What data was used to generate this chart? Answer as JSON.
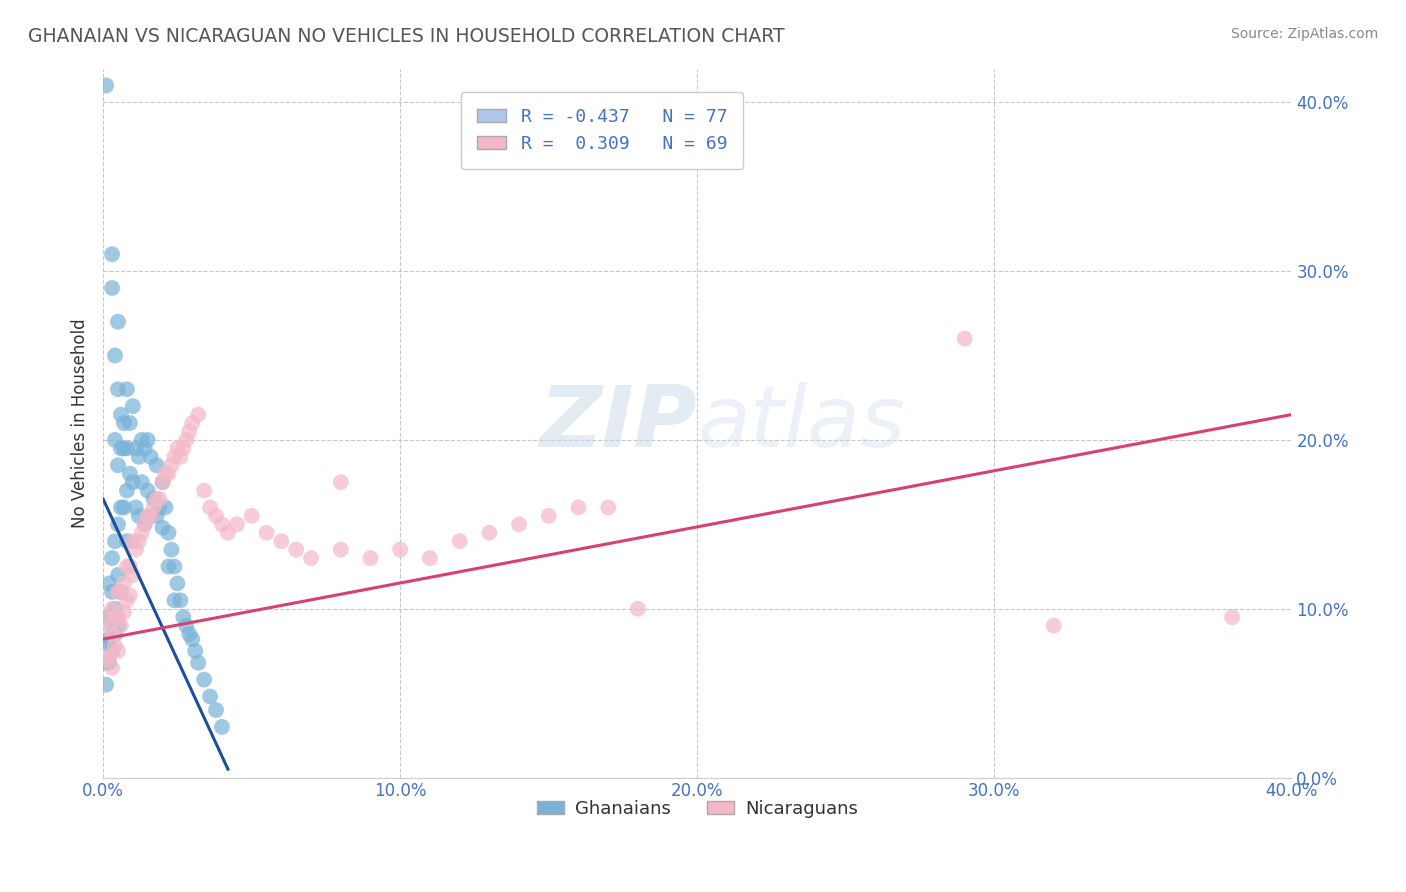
{
  "title": "GHANAIAN VS NICARAGUAN NO VEHICLES IN HOUSEHOLD CORRELATION CHART",
  "source": "Source: ZipAtlas.com",
  "ylabel": "No Vehicles in Household",
  "watermark_zip": "ZIP",
  "watermark_atlas": "atlas",
  "legend_entries": [
    {
      "label": "R = -0.437   N = 77",
      "color": "#aec6e8"
    },
    {
      "label": "R =  0.309   N = 69",
      "color": "#f4b8c8"
    }
  ],
  "legend_bottom": [
    "Ghanaians",
    "Nicaraguans"
  ],
  "ghanaian_color": "#7ab3d9",
  "nicaraguan_color": "#f4b8c8",
  "blue_line_color": "#1a4f9c",
  "pink_line_color": "#d94070",
  "title_color": "#555555",
  "axis_label_color": "#4472c4",
  "grid_color": "#bbbbbb",
  "background_color": "#ffffff",
  "xlim": [
    0.0,
    0.4
  ],
  "ylim": [
    0.0,
    0.42
  ],
  "yticks": [
    0.0,
    0.1,
    0.2,
    0.3,
    0.4
  ],
  "ytick_labels": [
    "0.0%",
    "10.0%",
    "20.0%",
    "30.0%",
    "40.0%"
  ],
  "xticks": [
    0.0,
    0.1,
    0.2,
    0.3,
    0.4
  ],
  "xtick_labels": [
    "0.0%",
    "10.0%",
    "20.0%",
    "30.0%",
    "40.0%"
  ],
  "ghanaians_x": [
    0.001,
    0.001,
    0.001,
    0.001,
    0.001,
    0.002,
    0.002,
    0.002,
    0.002,
    0.003,
    0.003,
    0.003,
    0.003,
    0.003,
    0.003,
    0.004,
    0.004,
    0.004,
    0.004,
    0.004,
    0.005,
    0.005,
    0.005,
    0.005,
    0.005,
    0.005,
    0.006,
    0.006,
    0.006,
    0.006,
    0.007,
    0.007,
    0.007,
    0.008,
    0.008,
    0.008,
    0.008,
    0.009,
    0.009,
    0.01,
    0.01,
    0.011,
    0.011,
    0.012,
    0.012,
    0.013,
    0.013,
    0.014,
    0.014,
    0.015,
    0.015,
    0.016,
    0.016,
    0.017,
    0.018,
    0.018,
    0.019,
    0.02,
    0.02,
    0.021,
    0.022,
    0.022,
    0.023,
    0.024,
    0.024,
    0.025,
    0.026,
    0.027,
    0.028,
    0.029,
    0.03,
    0.031,
    0.032,
    0.034,
    0.036,
    0.038,
    0.04
  ],
  "ghanaians_y": [
    0.41,
    0.095,
    0.08,
    0.068,
    0.055,
    0.115,
    0.095,
    0.082,
    0.068,
    0.31,
    0.29,
    0.13,
    0.11,
    0.09,
    0.075,
    0.25,
    0.2,
    0.14,
    0.1,
    0.085,
    0.27,
    0.23,
    0.185,
    0.15,
    0.12,
    0.09,
    0.215,
    0.195,
    0.16,
    0.11,
    0.21,
    0.195,
    0.16,
    0.23,
    0.195,
    0.17,
    0.14,
    0.21,
    0.18,
    0.22,
    0.175,
    0.195,
    0.16,
    0.19,
    0.155,
    0.2,
    0.175,
    0.195,
    0.15,
    0.2,
    0.17,
    0.19,
    0.155,
    0.165,
    0.185,
    0.155,
    0.16,
    0.175,
    0.148,
    0.16,
    0.145,
    0.125,
    0.135,
    0.125,
    0.105,
    0.115,
    0.105,
    0.095,
    0.09,
    0.085,
    0.082,
    0.075,
    0.068,
    0.058,
    0.048,
    0.04,
    0.03
  ],
  "nicaraguans_x": [
    0.001,
    0.001,
    0.002,
    0.002,
    0.003,
    0.003,
    0.003,
    0.004,
    0.004,
    0.005,
    0.005,
    0.005,
    0.006,
    0.006,
    0.007,
    0.007,
    0.008,
    0.008,
    0.009,
    0.009,
    0.01,
    0.01,
    0.011,
    0.012,
    0.013,
    0.014,
    0.015,
    0.016,
    0.017,
    0.018,
    0.019,
    0.02,
    0.021,
    0.022,
    0.023,
    0.024,
    0.025,
    0.026,
    0.027,
    0.028,
    0.029,
    0.03,
    0.032,
    0.034,
    0.036,
    0.038,
    0.04,
    0.042,
    0.045,
    0.05,
    0.055,
    0.06,
    0.065,
    0.07,
    0.08,
    0.09,
    0.1,
    0.11,
    0.12,
    0.13,
    0.14,
    0.15,
    0.16,
    0.17,
    0.29,
    0.32,
    0.38,
    0.08,
    0.18
  ],
  "nicaraguans_y": [
    0.095,
    0.07,
    0.09,
    0.072,
    0.1,
    0.085,
    0.065,
    0.095,
    0.078,
    0.11,
    0.095,
    0.075,
    0.11,
    0.09,
    0.115,
    0.098,
    0.125,
    0.105,
    0.125,
    0.108,
    0.14,
    0.12,
    0.135,
    0.14,
    0.145,
    0.15,
    0.155,
    0.155,
    0.16,
    0.165,
    0.165,
    0.175,
    0.18,
    0.18,
    0.185,
    0.19,
    0.195,
    0.19,
    0.195,
    0.2,
    0.205,
    0.21,
    0.215,
    0.17,
    0.16,
    0.155,
    0.15,
    0.145,
    0.15,
    0.155,
    0.145,
    0.14,
    0.135,
    0.13,
    0.135,
    0.13,
    0.135,
    0.13,
    0.14,
    0.145,
    0.15,
    0.155,
    0.16,
    0.16,
    0.26,
    0.09,
    0.095,
    0.175,
    0.1
  ],
  "blue_line_x": [
    0.0,
    0.042
  ],
  "blue_line_y": [
    0.165,
    0.005
  ],
  "pink_line_x": [
    0.0,
    0.4
  ],
  "pink_line_y": [
    0.082,
    0.215
  ]
}
